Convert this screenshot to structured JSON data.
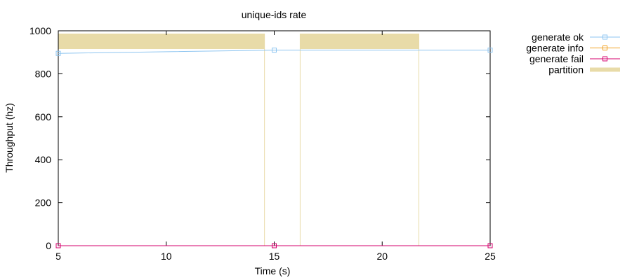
{
  "chart_data": {
    "type": "line",
    "title": "unique-ids rate",
    "xlabel": "Time (s)",
    "ylabel": "Throughput (hz)",
    "xlim": [
      5,
      25
    ],
    "ylim": [
      0,
      1000
    ],
    "xticks": [
      5,
      10,
      15,
      20,
      25
    ],
    "yticks": [
      0,
      200,
      400,
      600,
      800,
      1000
    ],
    "grid": false,
    "legend_position": "outside-top-right",
    "series": [
      {
        "name": "generate ok",
        "color": "#8ec5f0",
        "marker": "square",
        "x": [
          5,
          15,
          25
        ],
        "y": [
          895,
          910,
          910
        ]
      },
      {
        "name": "generate info",
        "color": "#f2a01e",
        "marker": "square",
        "x": [
          5,
          15,
          25
        ],
        "y": [
          0,
          0,
          0
        ]
      },
      {
        "name": "generate fail",
        "color": "#d6006e",
        "marker": "square",
        "x": [
          5,
          15,
          25
        ],
        "y": [
          0,
          0,
          0
        ]
      }
    ],
    "partitions": {
      "name": "partition",
      "color": "#e8dba8",
      "intervals": [
        [
          5,
          14.55
        ],
        [
          16.2,
          21.7
        ]
      ]
    }
  }
}
